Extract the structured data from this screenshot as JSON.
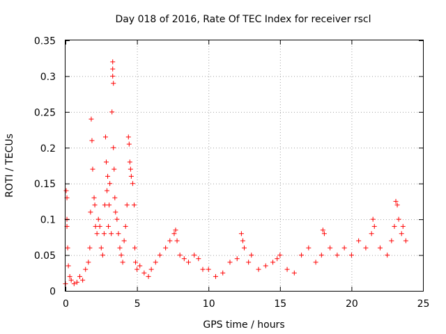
{
  "chart_data": {
    "type": "scatter",
    "title": "Day 018 of 2016, Rate Of TEC Index for receiver rscl",
    "xlabel": "GPS time / hours",
    "ylabel": "ROTI / TECUs",
    "xlim": [
      0,
      25
    ],
    "ylim": [
      0,
      0.35
    ],
    "xticks": [
      0,
      5,
      10,
      15,
      20,
      25
    ],
    "xtick_labels": [
      "0",
      "5",
      "10",
      "15",
      "20",
      "25"
    ],
    "yticks": [
      0,
      0.05,
      0.1,
      0.15,
      0.2,
      0.25,
      0.3,
      0.35
    ],
    "ytick_labels": [
      "0",
      "0.05",
      "0.1",
      "0.15",
      "0.2",
      "0.25",
      "0.3",
      "0.35"
    ],
    "grid": true,
    "marker": "+",
    "color": "#ff0000",
    "series": [
      {
        "name": "ROTI",
        "x": [
          0.0,
          0.05,
          0.1,
          0.1,
          0.1,
          0.15,
          0.2,
          0.3,
          0.4,
          0.6,
          0.8,
          1.0,
          1.2,
          1.4,
          1.6,
          1.7,
          1.75,
          1.8,
          1.85,
          1.9,
          2.0,
          2.05,
          2.1,
          2.2,
          2.3,
          2.4,
          2.5,
          2.6,
          2.7,
          2.75,
          2.8,
          2.85,
          2.9,
          2.95,
          3.0,
          3.05,
          3.1,
          3.2,
          3.25,
          3.3,
          3.3,
          3.3,
          3.35,
          3.35,
          3.4,
          3.45,
          3.5,
          3.6,
          3.7,
          3.8,
          3.9,
          4.0,
          4.1,
          4.2,
          4.3,
          4.4,
          4.45,
          4.5,
          4.55,
          4.6,
          4.7,
          4.8,
          4.85,
          4.9,
          5.0,
          5.2,
          5.5,
          5.8,
          6.0,
          6.3,
          6.6,
          7.0,
          7.3,
          7.6,
          7.7,
          7.8,
          8.0,
          8.3,
          8.6,
          9.0,
          9.3,
          9.6,
          10.0,
          10.5,
          11.0,
          11.5,
          12.0,
          12.3,
          12.4,
          12.5,
          12.8,
          13.0,
          13.5,
          14.0,
          14.5,
          14.8,
          15.0,
          15.5,
          16.0,
          16.5,
          17.0,
          17.5,
          17.9,
          18.0,
          18.1,
          18.5,
          19.0,
          19.5,
          20.0,
          20.5,
          21.0,
          21.4,
          21.5,
          21.6,
          22.0,
          22.5,
          22.8,
          23.0,
          23.1,
          23.2,
          23.3,
          23.5,
          23.6,
          23.8
        ],
        "y": [
          0.01,
          0.14,
          0.13,
          0.1,
          0.09,
          0.06,
          0.035,
          0.02,
          0.015,
          0.01,
          0.012,
          0.02,
          0.015,
          0.03,
          0.04,
          0.06,
          0.11,
          0.24,
          0.21,
          0.17,
          0.13,
          0.12,
          0.09,
          0.08,
          0.1,
          0.09,
          0.06,
          0.05,
          0.08,
          0.12,
          0.215,
          0.18,
          0.14,
          0.16,
          0.09,
          0.12,
          0.15,
          0.08,
          0.25,
          0.32,
          0.31,
          0.3,
          0.29,
          0.2,
          0.17,
          0.13,
          0.11,
          0.1,
          0.08,
          0.06,
          0.05,
          0.04,
          0.07,
          0.09,
          0.12,
          0.215,
          0.205,
          0.18,
          0.17,
          0.16,
          0.15,
          0.12,
          0.06,
          0.04,
          0.03,
          0.035,
          0.025,
          0.02,
          0.03,
          0.04,
          0.05,
          0.06,
          0.07,
          0.08,
          0.085,
          0.07,
          0.05,
          0.045,
          0.04,
          0.05,
          0.045,
          0.03,
          0.03,
          0.02,
          0.025,
          0.04,
          0.045,
          0.08,
          0.07,
          0.06,
          0.04,
          0.05,
          0.03,
          0.035,
          0.04,
          0.045,
          0.05,
          0.03,
          0.025,
          0.05,
          0.06,
          0.04,
          0.05,
          0.085,
          0.08,
          0.06,
          0.05,
          0.06,
          0.05,
          0.07,
          0.06,
          0.08,
          0.1,
          0.09,
          0.06,
          0.05,
          0.07,
          0.09,
          0.125,
          0.12,
          0.1,
          0.08,
          0.09,
          0.07
        ]
      }
    ]
  }
}
